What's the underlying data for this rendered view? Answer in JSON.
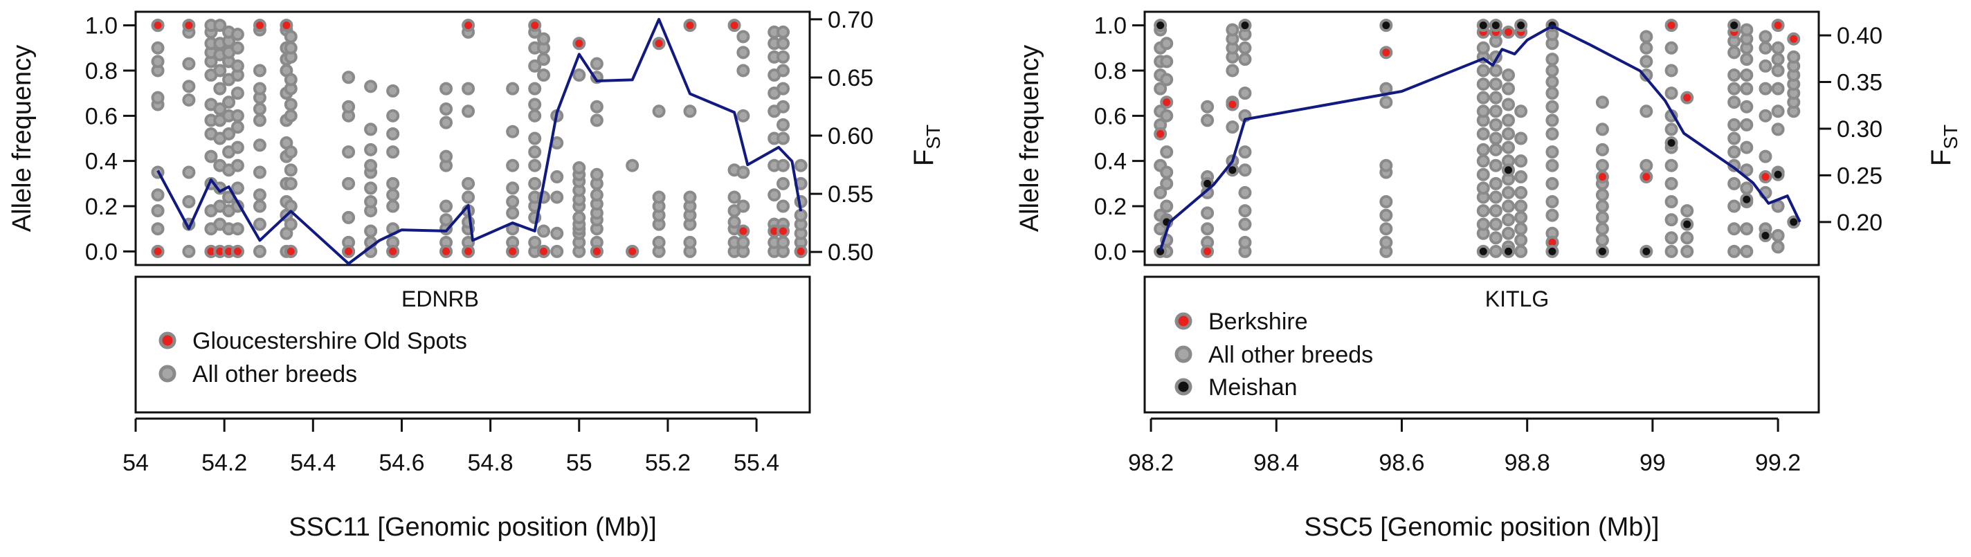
{
  "chart_data": [
    {
      "type": "scatter",
      "gene": "EDNRB",
      "xlabel": "SSC11 [Genomic position (Mb)]",
      "ylabel": "Allele frequency",
      "y2label": "F",
      "y2label_sub": "ST",
      "xlim": [
        54.0,
        55.52
      ],
      "ylim": [
        -0.06,
        1.06
      ],
      "y2lim": [
        0.4888,
        0.7065
      ],
      "xticks": [
        54.0,
        54.2,
        54.4,
        54.6,
        54.8,
        55.0,
        55.2,
        55.4
      ],
      "xtick_labels": [
        "54",
        "54.2",
        "54.4",
        "54.6",
        "54.8",
        "55",
        "55.2",
        "55.4"
      ],
      "yticks": [
        0.0,
        0.2,
        0.4,
        0.6,
        0.8,
        1.0
      ],
      "ytick_labels": [
        "0.0",
        "0.2",
        "0.4",
        "0.6",
        "0.8",
        "1.0"
      ],
      "y2ticks": [
        0.5,
        0.55,
        0.6,
        0.65,
        0.7
      ],
      "y2tick_labels": [
        "0.50",
        "0.55",
        "0.60",
        "0.65",
        "0.70"
      ],
      "legend": [
        {
          "label": "Gloucestershire Old Spots",
          "color": "#e8211d"
        },
        {
          "label": "All other breeds",
          "color": "#a6a6a6"
        }
      ],
      "positions": [
        54.05,
        54.12,
        54.17,
        54.19,
        54.21,
        54.23,
        54.28,
        54.34,
        54.35,
        54.48,
        54.53,
        54.58,
        54.7,
        54.75,
        54.85,
        54.9,
        54.92,
        54.95,
        55.0,
        55.04,
        55.12,
        55.18,
        55.25,
        55.35,
        55.37,
        55.44,
        55.46,
        55.5
      ],
      "other_breeds": [
        [
          0.0,
          0.1,
          0.18,
          0.25,
          0.35,
          0.65,
          0.68,
          0.8,
          0.84,
          0.9,
          1.0
        ],
        [
          0.0,
          0.12,
          0.22,
          0.35,
          0.67,
          0.73,
          0.83,
          0.97
        ],
        [
          0.0,
          0.1,
          0.18,
          0.3,
          0.42,
          0.52,
          0.58,
          0.65,
          0.78,
          0.84,
          0.88,
          0.92,
          0.97,
          1.0
        ],
        [
          0.0,
          0.12,
          0.2,
          0.28,
          0.38,
          0.5,
          0.58,
          0.63,
          0.72,
          0.8,
          0.87,
          0.92,
          1.0
        ],
        [
          0.0,
          0.1,
          0.18,
          0.24,
          0.36,
          0.44,
          0.52,
          0.6,
          0.66,
          0.76,
          0.84,
          0.88,
          0.93,
          0.97
        ],
        [
          0.0,
          0.1,
          0.2,
          0.28,
          0.38,
          0.46,
          0.55,
          0.6,
          0.7,
          0.78,
          0.82,
          0.9,
          0.96
        ],
        [
          0.0,
          0.12,
          0.2,
          0.25,
          0.35,
          0.47,
          0.58,
          0.63,
          0.68,
          0.72,
          0.8,
          0.98
        ],
        [
          0.0,
          0.08,
          0.16,
          0.22,
          0.3,
          0.42,
          0.48,
          0.58,
          0.7,
          0.8,
          0.85,
          0.9,
          0.98
        ],
        [
          0.0,
          0.12,
          0.2,
          0.3,
          0.36,
          0.44,
          0.6,
          0.65,
          0.72,
          0.76,
          0.86,
          0.9,
          0.95
        ],
        [
          0.0,
          0.04,
          0.15,
          0.3,
          0.44,
          0.6,
          0.64,
          0.77
        ],
        [
          0.0,
          0.04,
          0.09,
          0.18,
          0.22,
          0.28,
          0.35,
          0.38,
          0.45,
          0.54,
          0.73
        ],
        [
          0.0,
          0.04,
          0.1,
          0.2,
          0.25,
          0.3,
          0.44,
          0.52,
          0.6,
          0.71
        ],
        [
          0.0,
          0.04,
          0.1,
          0.14,
          0.2,
          0.38,
          0.42,
          0.57,
          0.63,
          0.72
        ],
        [
          0.0,
          0.04,
          0.1,
          0.13,
          0.18,
          0.24,
          0.3,
          0.62,
          0.72,
          0.97
        ],
        [
          0.0,
          0.04,
          0.1,
          0.17,
          0.22,
          0.28,
          0.38,
          0.53,
          0.72
        ],
        [
          0.0,
          0.04,
          0.15,
          0.2,
          0.24,
          0.3,
          0.38,
          0.44,
          0.5,
          0.6,
          0.65,
          0.72,
          0.82,
          0.9,
          0.97
        ],
        [
          0.0,
          0.09,
          0.24,
          0.78,
          0.85,
          0.9,
          0.94
        ],
        [
          0.0,
          0.08,
          0.24,
          0.33,
          0.48,
          0.6
        ],
        [
          0.0,
          0.04,
          0.08,
          0.1,
          0.12,
          0.15,
          0.2,
          0.23,
          0.27,
          0.31,
          0.34,
          0.37,
          0.78
        ],
        [
          0.0,
          0.04,
          0.1,
          0.14,
          0.17,
          0.21,
          0.25,
          0.3,
          0.34,
          0.58,
          0.64,
          0.77,
          0.83
        ],
        [
          0.0,
          0.38
        ],
        [
          0.0,
          0.04,
          0.12,
          0.16,
          0.2,
          0.24,
          0.62
        ],
        [
          0.0,
          0.04,
          0.12,
          0.16,
          0.2,
          0.24,
          0.62
        ],
        [
          0.0,
          0.04,
          0.1,
          0.13,
          0.18,
          0.24,
          0.36
        ],
        [
          0.0,
          0.04,
          0.2,
          0.35,
          0.6,
          0.8,
          0.88,
          0.95
        ],
        [
          0.0,
          0.04,
          0.12,
          0.25,
          0.38,
          0.5,
          0.62,
          0.7,
          0.78,
          0.86,
          0.92,
          0.97
        ],
        [
          0.0,
          0.04,
          0.12,
          0.2,
          0.3,
          0.38,
          0.5,
          0.56,
          0.64,
          0.72,
          0.8,
          0.86,
          0.92,
          0.97
        ],
        [
          0.0,
          0.04,
          0.08,
          0.12,
          0.16,
          0.22,
          0.3,
          0.38
        ]
      ],
      "focal_breed": [
        [
          1.0,
          0.0
        ],
        [
          1.0
        ],
        [
          0.0
        ],
        [
          0.0
        ],
        [
          0.0
        ],
        [
          0.0
        ],
        [
          1.0
        ],
        [
          1.0
        ],
        [
          0.0
        ],
        [
          0.0
        ],
        [],
        [
          0.0
        ],
        [
          0.0
        ],
        [
          1.0,
          0.0
        ],
        [
          0.0
        ],
        [
          1.0
        ],
        [
          0.0
        ],
        [],
        [
          0.92
        ],
        [
          0.0
        ],
        [
          0.0
        ],
        [
          0.92
        ],
        [
          1.0
        ],
        [
          1.0
        ],
        [
          0.09
        ],
        [
          0.09
        ],
        [
          0.09
        ],
        [
          0.0
        ]
      ],
      "fst": {
        "x": [
          54.05,
          54.12,
          54.17,
          54.19,
          54.21,
          54.28,
          54.35,
          54.48,
          54.55,
          54.6,
          54.7,
          54.75,
          54.76,
          54.85,
          54.9,
          54.95,
          55.0,
          55.04,
          55.12,
          55.18,
          55.25,
          55.35,
          55.38,
          55.45,
          55.48,
          55.5
        ],
        "values": [
          0.57,
          0.52,
          0.562,
          0.552,
          0.556,
          0.51,
          0.535,
          0.49,
          0.51,
          0.519,
          0.518,
          0.54,
          0.51,
          0.525,
          0.518,
          0.62,
          0.67,
          0.647,
          0.648,
          0.7,
          0.636,
          0.62,
          0.575,
          0.59,
          0.578,
          0.535
        ]
      }
    },
    {
      "type": "scatter",
      "gene": "KITLG",
      "xlabel": "SSC5 [Genomic position (Mb)]",
      "ylabel": "Allele frequency",
      "y2label": "F",
      "y2label_sub": "ST",
      "xlim": [
        98.19,
        99.265
      ],
      "ylim": [
        -0.06,
        1.06
      ],
      "y2lim": [
        0.1539,
        0.4253
      ],
      "xticks": [
        98.2,
        98.4,
        98.6,
        98.8,
        99.0,
        99.2
      ],
      "xtick_labels": [
        "98.2",
        "98.4",
        "98.6",
        "98.8",
        "99",
        "99.2"
      ],
      "yticks": [
        0.0,
        0.2,
        0.4,
        0.6,
        0.8,
        1.0
      ],
      "ytick_labels": [
        "0.0",
        "0.2",
        "0.4",
        "0.6",
        "0.8",
        "1.0"
      ],
      "y2ticks": [
        0.2,
        0.25,
        0.3,
        0.35,
        0.4
      ],
      "y2tick_labels": [
        "0.20",
        "0.25",
        "0.30",
        "0.35",
        "0.40"
      ],
      "legend": [
        {
          "label": "Berkshire",
          "color": "#e8211d"
        },
        {
          "label": "All other breeds",
          "color": "#a6a6a6"
        },
        {
          "label": "Meishan",
          "color": "#111111"
        }
      ],
      "positions": [
        98.215,
        98.225,
        98.29,
        98.33,
        98.35,
        98.575,
        98.73,
        98.75,
        98.77,
        98.79,
        98.84,
        98.92,
        98.99,
        99.03,
        99.055,
        99.13,
        99.15,
        99.18,
        99.2,
        99.225
      ],
      "other_breeds": [
        [
          0.1,
          0.16,
          0.26,
          0.38,
          0.56,
          0.62,
          0.72,
          0.78,
          0.84,
          0.9,
          0.98
        ],
        [
          0.0,
          0.05,
          0.14,
          0.2,
          0.3,
          0.35,
          0.44,
          0.6,
          0.76,
          0.84,
          0.92
        ],
        [
          0.04,
          0.1,
          0.17,
          0.26,
          0.33,
          0.58,
          0.64
        ],
        [
          0.4,
          0.55,
          0.66,
          0.8,
          0.86,
          0.9,
          0.94,
          0.98
        ],
        [
          0.0,
          0.04,
          0.12,
          0.18,
          0.26,
          0.36,
          0.44,
          0.6,
          0.7,
          0.85,
          0.9,
          0.96
        ],
        [
          0.0,
          0.04,
          0.1,
          0.16,
          0.22,
          0.35,
          0.38,
          0.66,
          0.72
        ],
        [
          0.08,
          0.12,
          0.18,
          0.24,
          0.28,
          0.34,
          0.4,
          0.45,
          0.52,
          0.58,
          0.62,
          0.68,
          0.74,
          0.8,
          0.86,
          0.9
        ],
        [
          0.0,
          0.06,
          0.12,
          0.18,
          0.24,
          0.3,
          0.38,
          0.45,
          0.5,
          0.56,
          0.62,
          0.68,
          0.74,
          0.8,
          0.86,
          0.93
        ],
        [
          0.02,
          0.08,
          0.14,
          0.2,
          0.26,
          0.32,
          0.4,
          0.46,
          0.52,
          0.58,
          0.65,
          0.72,
          0.78
        ],
        [
          0.0,
          0.05,
          0.1,
          0.15,
          0.2,
          0.26,
          0.33,
          0.4,
          0.5,
          0.62
        ],
        [
          0.04,
          0.08,
          0.16,
          0.22,
          0.3,
          0.38,
          0.44,
          0.52,
          0.58,
          0.64,
          0.7,
          0.75,
          0.8,
          0.85,
          0.92,
          0.96
        ],
        [
          0.0,
          0.05,
          0.1,
          0.15,
          0.2,
          0.25,
          0.3,
          0.38,
          0.45,
          0.54,
          0.66
        ],
        [
          0.38,
          0.62,
          0.78,
          0.84,
          0.9,
          0.95
        ],
        [
          0.0,
          0.06,
          0.14,
          0.22,
          0.3,
          0.38,
          0.46,
          0.54,
          0.6,
          0.7,
          0.8,
          0.9
        ],
        [
          0.0,
          0.06,
          0.18
        ],
        [
          0.0,
          0.1,
          0.2,
          0.3,
          0.38,
          0.44,
          0.5,
          0.56,
          0.66,
          0.72,
          0.78,
          0.88,
          0.93
        ],
        [
          0.0,
          0.1,
          0.22,
          0.28,
          0.36,
          0.46,
          0.56,
          0.64,
          0.72,
          0.78,
          0.85,
          0.9,
          0.94,
          0.98
        ],
        [
          0.1,
          0.26,
          0.42,
          0.6,
          0.72,
          0.82,
          0.9,
          0.95
        ],
        [
          0.02,
          0.07,
          0.2,
          0.35,
          0.54,
          0.62,
          0.72,
          0.8,
          0.85,
          0.9
        ],
        [
          0.62,
          0.66,
          0.7,
          0.74,
          0.78,
          0.82,
          0.86
        ]
      ],
      "focal_breed": [
        [
          0.52
        ],
        [
          0.66
        ],
        [
          0.0
        ],
        [
          0.65
        ],
        [],
        [
          0.88
        ],
        [
          0.97
        ],
        [
          0.97
        ],
        [
          0.97
        ],
        [
          0.97
        ],
        [
          0.04
        ],
        [
          0.33
        ],
        [
          0.33
        ],
        [
          1.0
        ],
        [
          0.68
        ],
        [
          0.97
        ],
        [],
        [
          0.33
        ],
        [
          1.0
        ],
        [
          0.94
        ]
      ],
      "meishan": [
        [
          1.0,
          0.0
        ],
        [
          0.13
        ],
        [
          0.3
        ],
        [
          0.36
        ],
        [
          1.0
        ],
        [
          1.0
        ],
        [
          1.0,
          0.0
        ],
        [
          1.0
        ],
        [
          0.36,
          0.0
        ],
        [
          1.0
        ],
        [
          1.0,
          0.0
        ],
        [
          0.0
        ],
        [
          0.0
        ],
        [
          0.48
        ],
        [
          0.12
        ],
        [
          1.0
        ],
        [
          0.23
        ],
        [
          0.07
        ],
        [
          0.34
        ],
        [
          0.13
        ]
      ],
      "fst": {
        "x": [
          98.215,
          98.23,
          98.3,
          98.33,
          98.35,
          98.6,
          98.73,
          98.745,
          98.76,
          98.78,
          98.8,
          98.84,
          98.9,
          98.98,
          99.02,
          99.05,
          99.13,
          99.16,
          99.185,
          99.215
        ],
        "values": [
          0.17,
          0.2,
          0.24,
          0.265,
          0.31,
          0.34,
          0.375,
          0.368,
          0.385,
          0.38,
          0.395,
          0.41,
          0.39,
          0.362,
          0.33,
          0.295,
          0.258,
          0.242,
          0.22,
          0.228
        ]
      },
      "fst_end": {
        "x": 99.235,
        "value": 0.2
      }
    }
  ]
}
